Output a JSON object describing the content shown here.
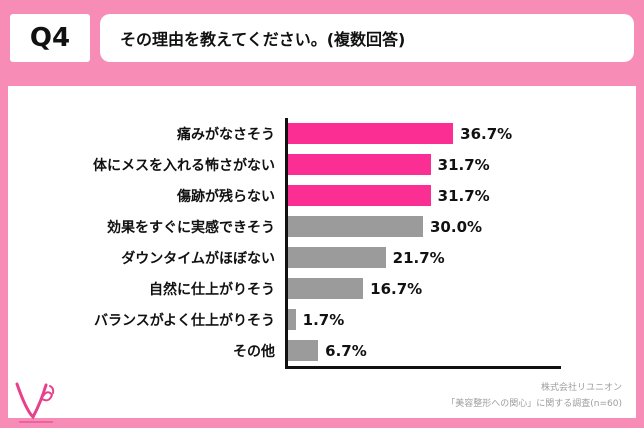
{
  "header": {
    "q_label": "Q4",
    "question": "その理由を教えてください。(複数回答)"
  },
  "chart_data": {
    "type": "bar",
    "orientation": "horizontal",
    "title": "その理由を教えてください。(複数回答)",
    "categories": [
      "痛みがなさそう",
      "体にメスを入れる怖さがない",
      "傷跡が残らない",
      "効果をすぐに実感できそう",
      "ダウンタイムがほぼない",
      "自然に仕上がりそう",
      "バランスがよく仕上がりそう",
      "その他"
    ],
    "values": [
      36.7,
      31.7,
      31.7,
      30.0,
      21.7,
      16.7,
      1.7,
      6.7
    ],
    "value_labels": [
      "36.7%",
      "31.7%",
      "31.7%",
      "30.0%",
      "21.7%",
      "16.7%",
      "1.7%",
      "6.7%"
    ],
    "bar_colors": [
      "#FB2E93",
      "#FB2E93",
      "#FB2E93",
      "#9B9B9B",
      "#9B9B9B",
      "#9B9B9B",
      "#9B9B9B",
      "#9B9B9B"
    ],
    "xlim": [
      0,
      60
    ],
    "xlabel": "",
    "ylabel": "",
    "grid": false,
    "legend": false
  },
  "footer": {
    "company": "株式会社リユニオン",
    "survey": "「美容整形への関心」に関する調査(n=60)"
  },
  "colors": {
    "background_pink": "#F78DB6",
    "bar_pink": "#FB2E93",
    "bar_gray": "#9B9B9B",
    "axis_black": "#111111",
    "card_white": "#FFFFFF"
  }
}
